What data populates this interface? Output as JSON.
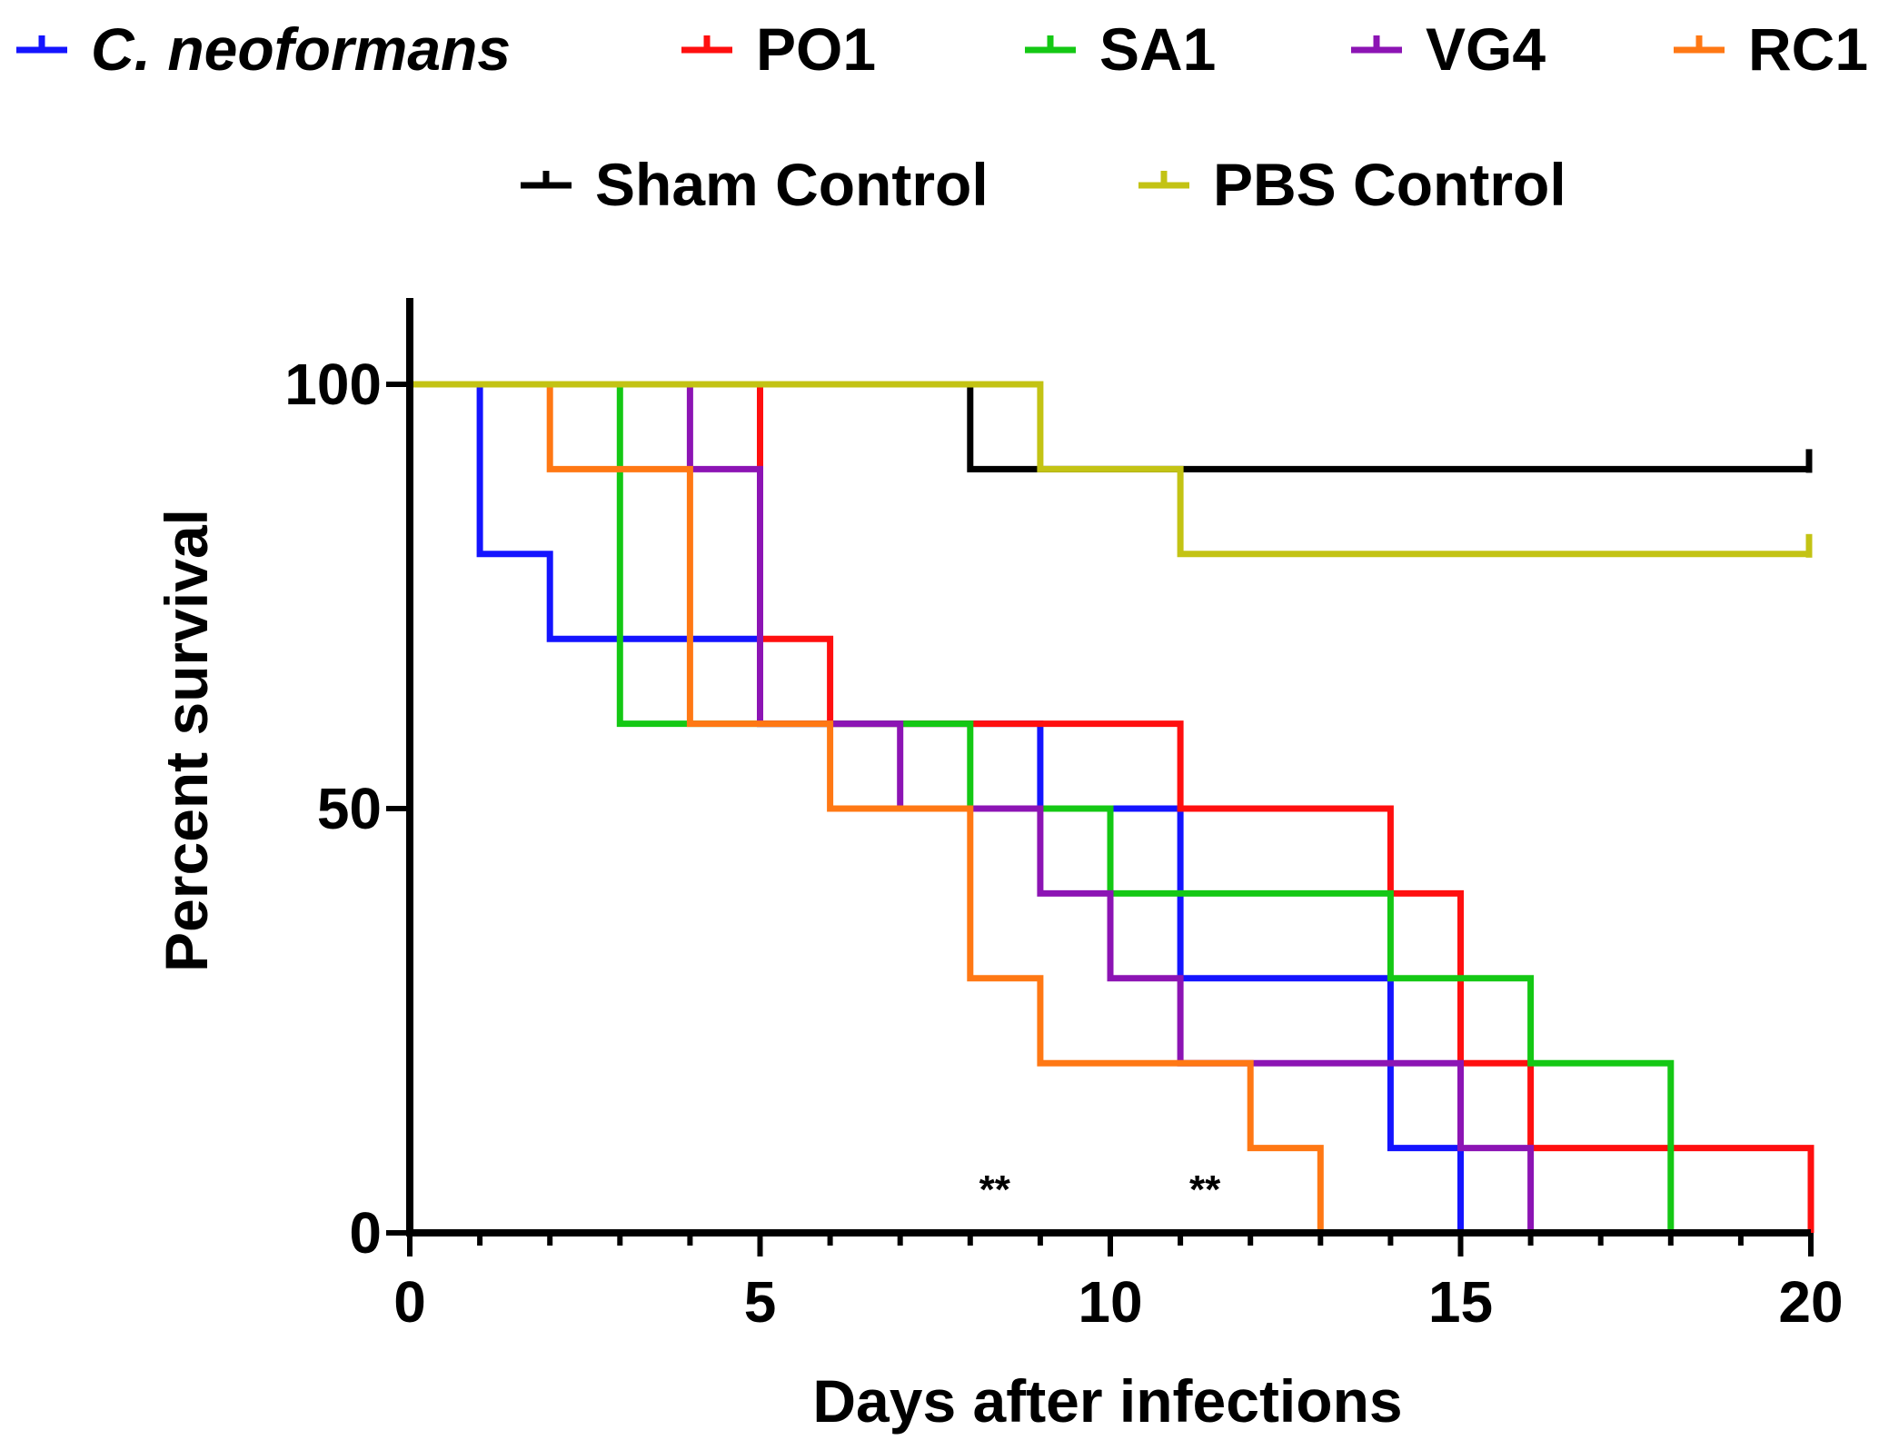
{
  "chart_data": {
    "type": "line",
    "step": true,
    "xlabel": "Days after infections",
    "ylabel": "Percent survival",
    "xlim": [
      0,
      20
    ],
    "ylim": [
      0,
      110
    ],
    "xticks": [
      0,
      5,
      10,
      15,
      20
    ],
    "yticks": [
      0,
      50,
      100
    ],
    "grid": false,
    "legend_position": "top",
    "series": [
      {
        "name": "C. neoformans",
        "italic": true,
        "color": "#1414ff",
        "x": [
          0,
          1,
          2,
          5,
          9,
          11,
          14,
          15
        ],
        "y": [
          100,
          80,
          70,
          60,
          50,
          30,
          10,
          0
        ]
      },
      {
        "name": "PO1",
        "color": "#ff0f0f",
        "x": [
          0,
          5,
          6,
          11,
          14,
          15,
          16,
          20
        ],
        "y": [
          100,
          70,
          60,
          50,
          40,
          20,
          10,
          0
        ]
      },
      {
        "name": "SA1",
        "color": "#14c814",
        "x": [
          0,
          3,
          8,
          10,
          14,
          16,
          18
        ],
        "y": [
          100,
          60,
          50,
          40,
          30,
          20,
          0
        ]
      },
      {
        "name": "VG4",
        "color": "#8c14b4",
        "x": [
          0,
          4,
          5,
          7,
          9,
          10,
          11,
          15,
          16
        ],
        "y": [
          100,
          90,
          60,
          50,
          40,
          30,
          20,
          10,
          0
        ]
      },
      {
        "name": "RC1",
        "color": "#ff7814",
        "x": [
          0,
          2,
          4,
          6,
          8,
          9,
          12,
          13
        ],
        "y": [
          100,
          90,
          60,
          50,
          30,
          20,
          10,
          0
        ]
      },
      {
        "name": "Sham Control",
        "color": "#000000",
        "x": [
          0,
          8,
          20
        ],
        "y": [
          100,
          90,
          90
        ],
        "censored_end": true
      },
      {
        "name": "PBS Control",
        "color": "#c3c314",
        "x": [
          0,
          9,
          11,
          20
        ],
        "y": [
          100,
          90,
          80,
          80
        ],
        "censored_end": true
      }
    ],
    "annotations": [
      {
        "text": "**",
        "x": 8.35,
        "y": 3
      },
      {
        "text": "**",
        "x": 11.35,
        "y": 3
      }
    ]
  }
}
